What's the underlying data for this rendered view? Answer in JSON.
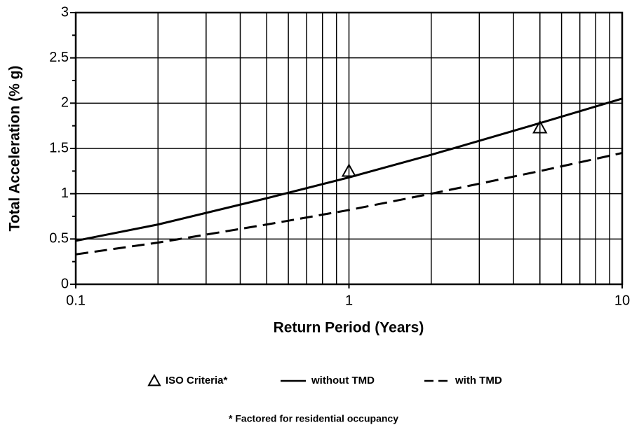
{
  "chart_data": {
    "type": "line",
    "y_label": "Total Acceleration  (% g)",
    "x_label": "Return Period  (Years)",
    "footnote": "* Factored for residential occupancy",
    "xscale": "log",
    "grid": true,
    "xlim": [
      0.1,
      10
    ],
    "xticks": [
      0.1,
      1,
      10
    ],
    "ylim": [
      0,
      3
    ],
    "yticks": [
      0,
      0.5,
      1,
      1.5,
      2,
      2.5,
      3
    ],
    "series": [
      {
        "name": "ISO Criteria*",
        "color": "#000000",
        "style": "triangle",
        "x": [
          1,
          5
        ],
        "values": [
          1.25,
          1.73
        ]
      },
      {
        "name": "without TMD",
        "color": "#000000",
        "style": "solid",
        "x": [
          0.1,
          0.2,
          0.5,
          1,
          2,
          5,
          10
        ],
        "values": [
          0.48,
          0.66,
          0.95,
          1.18,
          1.43,
          1.78,
          2.05
        ]
      },
      {
        "name": "with TMD",
        "color": "#000000",
        "style": "dashed",
        "x": [
          0.1,
          0.2,
          0.5,
          1,
          2,
          5,
          10
        ],
        "values": [
          0.33,
          0.46,
          0.66,
          0.82,
          1.0,
          1.25,
          1.45
        ]
      }
    ]
  }
}
